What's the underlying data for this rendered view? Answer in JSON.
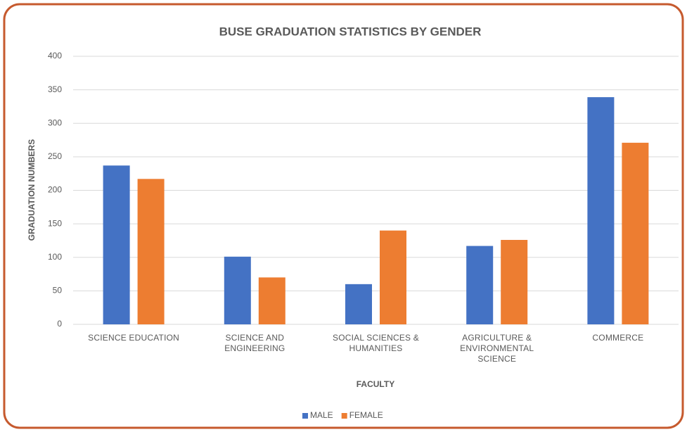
{
  "chart_data": {
    "type": "bar",
    "title": "BUSE GRADUATION STATISTICS  BY GENDER",
    "x_label": "FACULTY",
    "y_label": "GRADUATION NUMBERS",
    "categories": [
      "SCIENCE EDUCATION",
      "SCIENCE AND ENGINEERING",
      "SOCIAL SCIENCES & HUMANITIES",
      "AGRICULTURE & ENVIRONMENTAL SCIENCE",
      "COMMERCE"
    ],
    "series": [
      {
        "name": "MALE",
        "color": "#4472c4",
        "values": [
          237,
          101,
          60,
          117,
          339
        ]
      },
      {
        "name": "FEMALE",
        "color": "#ed7d31",
        "values": [
          217,
          70,
          140,
          126,
          271
        ]
      }
    ],
    "ylim": [
      0,
      400
    ],
    "yticks": [
      0,
      50,
      100,
      150,
      200,
      250,
      300,
      350,
      400
    ],
    "grid": true,
    "legend": "bottom"
  }
}
